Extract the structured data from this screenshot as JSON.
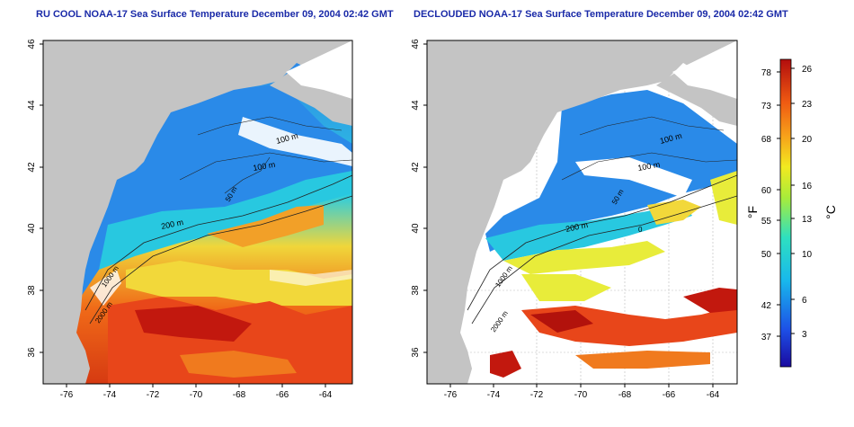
{
  "titles": {
    "left": "RU COOL NOAA-17 Sea Surface Temperature December 09, 2004 02:42 GMT",
    "right": "DECLOUDED NOAA-17 Sea Surface Temperature December 09, 2004 02:42 GMT"
  },
  "axes": {
    "lat_ticks": [
      "46",
      "44",
      "42",
      "40",
      "38",
      "36"
    ],
    "lon_ticks": [
      "-76",
      "-74",
      "-72",
      "-70",
      "-68",
      "-66",
      "-64"
    ]
  },
  "contour_labels": {
    "m100_a": "100 m",
    "m100_b": "100 m",
    "m200": "200 m",
    "m50": "50 m",
    "m2000": "2000 m",
    "m1000": "1000 m",
    "m0": "0"
  },
  "colorbar": {
    "fahrenheit_ticks": [
      "78",
      "73",
      "68",
      "60",
      "55",
      "50",
      "42",
      "37"
    ],
    "celsius_ticks": [
      "26",
      "23",
      "20",
      "16",
      "13",
      "10",
      "6",
      "3"
    ],
    "unit_f": "°F",
    "unit_c": "°C"
  },
  "colors": {
    "land": "#c4c4c4",
    "title": "#1a2aa8",
    "sst_cold": "#1c5fe0",
    "sst_warm": "#d42a10"
  }
}
